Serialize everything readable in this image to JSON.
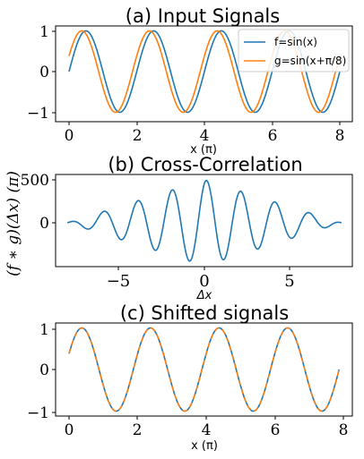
{
  "colors": {
    "blue": "#1f77b4",
    "orange": "#ff7f0e"
  },
  "chart_data": [
    {
      "type": "line",
      "title": "(a) Input Signals",
      "xlabel": "x (π)",
      "ylabel": "",
      "xlim": [
        -0.2,
        8.2
      ],
      "ylim": [
        -1.1,
        1.1
      ],
      "xticks": [
        "0",
        "2",
        "4",
        "6",
        "8"
      ],
      "yticks": [
        "−1",
        "0",
        "1"
      ],
      "legend": {
        "placement": "top-right",
        "entries": [
          "f=sin(x)",
          "g=sin(x+π/8)"
        ]
      },
      "series": [
        {
          "name": "f=sin(x)",
          "function": "sin(pi*x)",
          "x_range": [
            0,
            8
          ],
          "color": "#1f77b4"
        },
        {
          "name": "g=sin(x+π/8)",
          "function": "sin(pi*x + pi/8)",
          "x_range": [
            0,
            8
          ],
          "color": "#ff7f0e"
        }
      ]
    },
    {
      "type": "line",
      "title": "(b) Cross-Correlation",
      "xlabel": "Δx",
      "ylabel": "(f ∗ g)(Δx) (π)",
      "xlim": [
        -8.4,
        8.4
      ],
      "ylim": [
        -470,
        520
      ],
      "xticks": [
        "−5",
        "0",
        "5"
      ],
      "yticks": [
        "0",
        "500"
      ],
      "series": [
        {
          "function": "cross-correlation of the two signals: triangular envelope, peak ≈ 500 at Δx ≈ 0.1, oscillation period 2",
          "x_range": [
            -8,
            8
          ],
          "peak": 500,
          "color": "#1f77b4"
        }
      ]
    },
    {
      "type": "line",
      "title": "(c) Shifted signals",
      "xlabel": "x (π)",
      "ylabel": "",
      "xlim": [
        -0.2,
        8.0
      ],
      "ylim": [
        -1.1,
        1.1
      ],
      "xticks": [
        "0",
        "2",
        "4",
        "6",
        "8"
      ],
      "yticks": [
        "−1",
        "0",
        "1"
      ],
      "series": [
        {
          "function": "sin(pi*x + pi/8)",
          "x_range": [
            0,
            7.875
          ],
          "color": "#1f77b4",
          "style": "solid"
        },
        {
          "function": "sin(pi*x + pi/8)",
          "x_range": [
            0,
            7.875
          ],
          "color": "#ff7f0e",
          "style": "dashed"
        }
      ]
    }
  ]
}
